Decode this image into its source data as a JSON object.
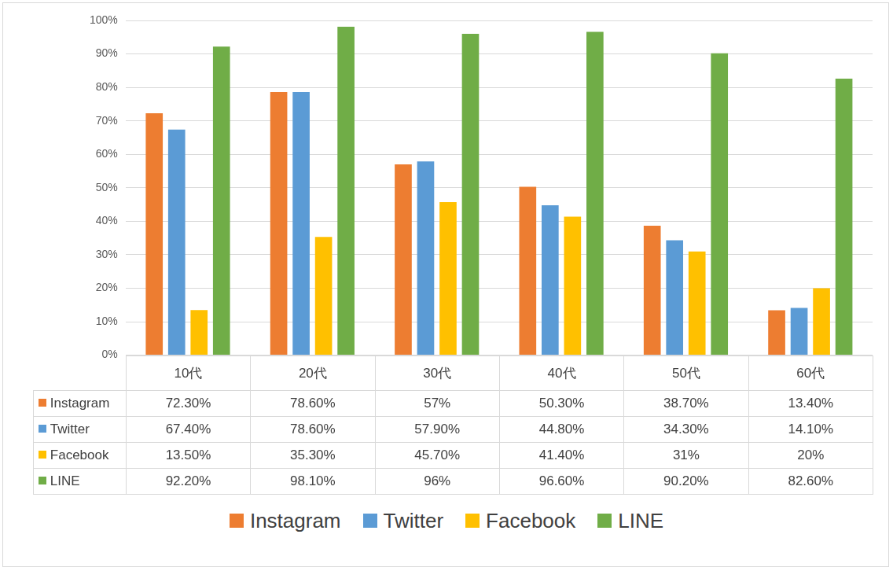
{
  "chart_data": {
    "type": "bar",
    "categories": [
      "10代",
      "20代",
      "30代",
      "40代",
      "50代",
      "60代"
    ],
    "series": [
      {
        "name": "Instagram",
        "color": "#ED7D31",
        "values": [
          72.3,
          78.6,
          57,
          50.3,
          38.7,
          13.4
        ],
        "value_labels": [
          "72.30%",
          "78.60%",
          "57%",
          "50.30%",
          "38.70%",
          "13.40%"
        ]
      },
      {
        "name": "Twitter",
        "color": "#5B9BD5",
        "values": [
          67.4,
          78.6,
          57.9,
          44.8,
          34.3,
          14.1
        ],
        "value_labels": [
          "67.40%",
          "78.60%",
          "57.90%",
          "44.80%",
          "34.30%",
          "14.10%"
        ]
      },
      {
        "name": "Facebook",
        "color": "#FFC000",
        "values": [
          13.5,
          35.3,
          45.7,
          41.4,
          31,
          20
        ],
        "value_labels": [
          "13.50%",
          "35.30%",
          "45.70%",
          "41.40%",
          "31%",
          "20%"
        ]
      },
      {
        "name": "LINE",
        "color": "#70AD47",
        "values": [
          92.2,
          98.1,
          96,
          96.6,
          90.2,
          82.6
        ],
        "value_labels": [
          "92.20%",
          "98.10%",
          "96%",
          "96.60%",
          "90.20%",
          "82.60%"
        ]
      }
    ],
    "ylim": [
      0,
      100
    ],
    "yticks": [
      {
        "value": 0,
        "label": "0%"
      },
      {
        "value": 10,
        "label": "10%"
      },
      {
        "value": 20,
        "label": "20%"
      },
      {
        "value": 30,
        "label": "30%"
      },
      {
        "value": 40,
        "label": "40%"
      },
      {
        "value": 50,
        "label": "50%"
      },
      {
        "value": 60,
        "label": "60%"
      },
      {
        "value": 70,
        "label": "70%"
      },
      {
        "value": 80,
        "label": "80%"
      },
      {
        "value": 90,
        "label": "90%"
      },
      {
        "value": 100,
        "label": "100%"
      }
    ],
    "grid": true,
    "legend": "bottom"
  }
}
